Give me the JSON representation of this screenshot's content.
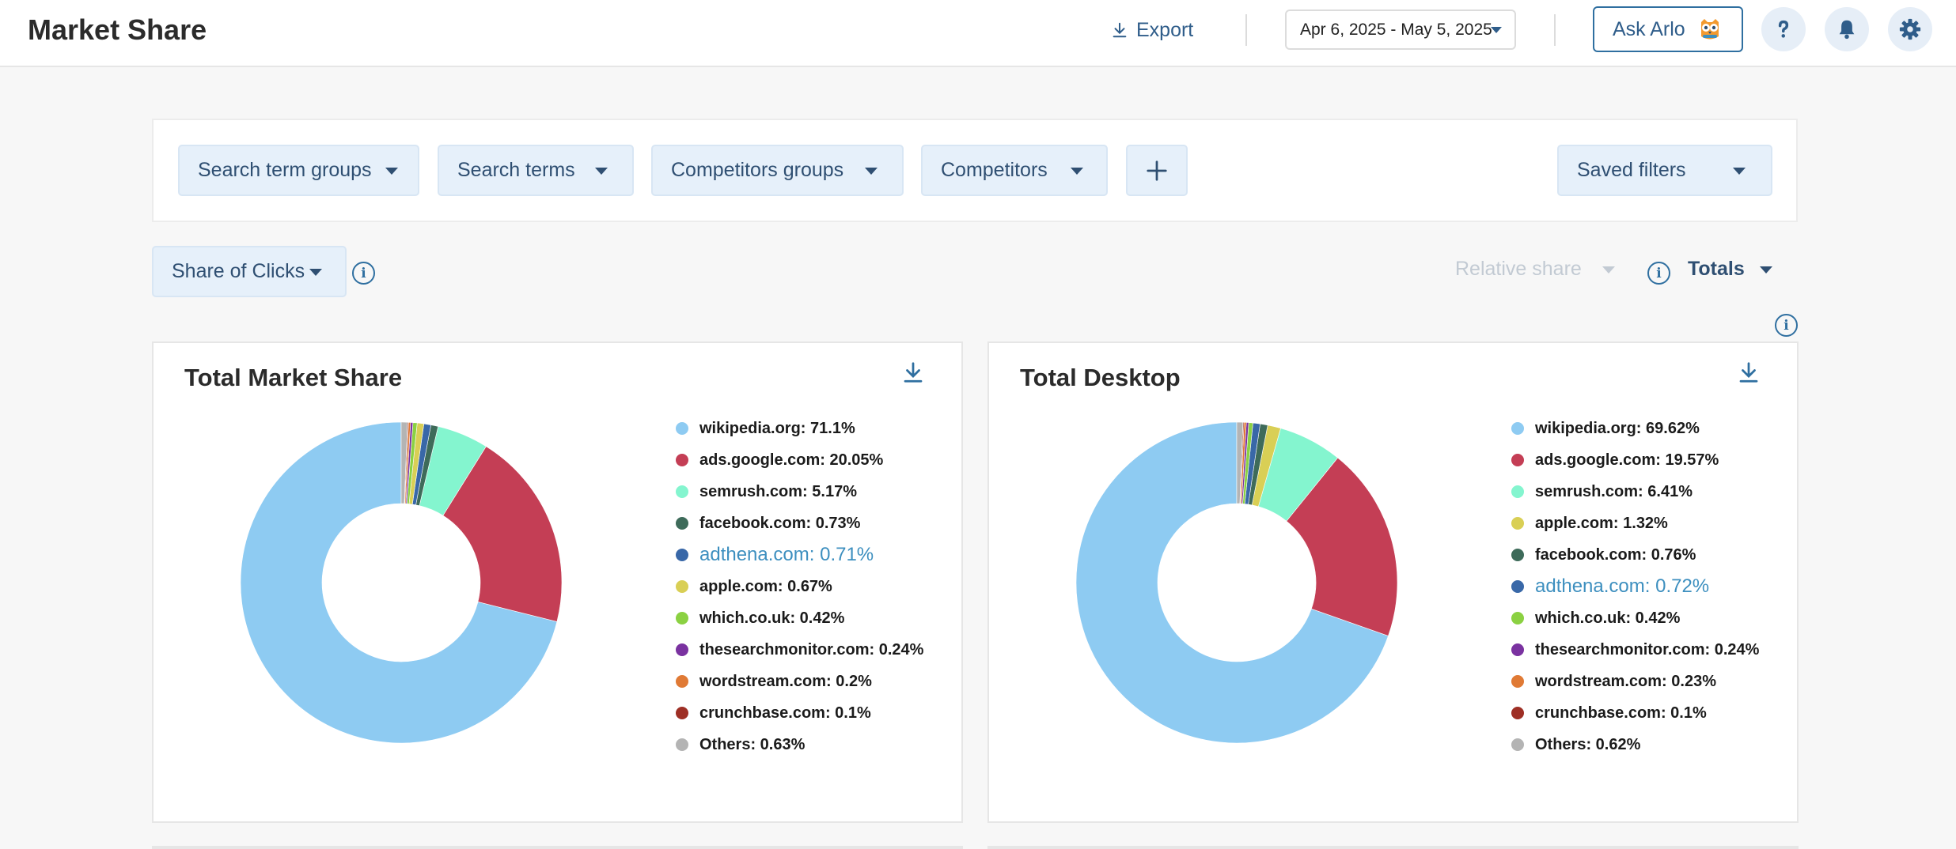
{
  "header": {
    "title": "Market Share",
    "export_label": "Export",
    "date_range": "Apr 6, 2025 - May 5, 2025",
    "ask_label": "Ask Arlo"
  },
  "filters": {
    "search_term_groups": "Search term groups",
    "search_terms": "Search terms",
    "competitors_groups": "Competitors groups",
    "competitors": "Competitors",
    "saved_filters": "Saved filters"
  },
  "controls": {
    "metric": "Share of Clicks",
    "relative_share": "Relative share",
    "totals": "Totals"
  },
  "colors": {
    "wikipedia": "#8ecbf2",
    "ads_google": "#c43e55",
    "semrush": "#84f5cf",
    "apple": "#d9cf55",
    "facebook": "#3e6b5a",
    "adthena": "#3968a8",
    "which": "#8bd142",
    "thesearchmonitor": "#7a32a0",
    "wordstream": "#e07a35",
    "crunchbase": "#9e2f25",
    "others": "#b4b4b4"
  },
  "charts": [
    {
      "title": "Total Market Share",
      "type": "donut",
      "slices": [
        {
          "label": "wikipedia.org: 71.1%",
          "value": 71.1,
          "color": "#8ecbf2"
        },
        {
          "label": "ads.google.com: 20.05%",
          "value": 20.05,
          "color": "#c43e55"
        },
        {
          "label": "semrush.com: 5.17%",
          "value": 5.17,
          "color": "#84f5cf"
        },
        {
          "label": "facebook.com: 0.73%",
          "value": 0.73,
          "color": "#3e6b5a"
        },
        {
          "label": "adthena.com: 0.71%",
          "value": 0.71,
          "color": "#3968a8",
          "highlight": true
        },
        {
          "label": "apple.com: 0.67%",
          "value": 0.67,
          "color": "#d9cf55"
        },
        {
          "label": "which.co.uk: 0.42%",
          "value": 0.42,
          "color": "#8bd142"
        },
        {
          "label": "thesearchmonitor.com: 0.24%",
          "value": 0.24,
          "color": "#7a32a0"
        },
        {
          "label": "wordstream.com: 0.2%",
          "value": 0.2,
          "color": "#e07a35"
        },
        {
          "label": "crunchbase.com: 0.1%",
          "value": 0.1,
          "color": "#9e2f25"
        },
        {
          "label": "Others: 0.63%",
          "value": 0.63,
          "color": "#b4b4b4"
        }
      ]
    },
    {
      "title": "Total Desktop",
      "type": "donut",
      "slices": [
        {
          "label": "wikipedia.org: 69.62%",
          "value": 69.62,
          "color": "#8ecbf2"
        },
        {
          "label": "ads.google.com: 19.57%",
          "value": 19.57,
          "color": "#c43e55"
        },
        {
          "label": "semrush.com: 6.41%",
          "value": 6.41,
          "color": "#84f5cf"
        },
        {
          "label": "apple.com: 1.32%",
          "value": 1.32,
          "color": "#d9cf55"
        },
        {
          "label": "facebook.com: 0.76%",
          "value": 0.76,
          "color": "#3e6b5a"
        },
        {
          "label": "adthena.com: 0.72%",
          "value": 0.72,
          "color": "#3968a8",
          "highlight": true
        },
        {
          "label": "which.co.uk: 0.42%",
          "value": 0.42,
          "color": "#8bd142"
        },
        {
          "label": "thesearchmonitor.com: 0.24%",
          "value": 0.24,
          "color": "#7a32a0"
        },
        {
          "label": "wordstream.com: 0.23%",
          "value": 0.23,
          "color": "#e07a35"
        },
        {
          "label": "crunchbase.com: 0.1%",
          "value": 0.1,
          "color": "#9e2f25"
        },
        {
          "label": "Others: 0.62%",
          "value": 0.62,
          "color": "#b4b4b4"
        }
      ]
    }
  ]
}
